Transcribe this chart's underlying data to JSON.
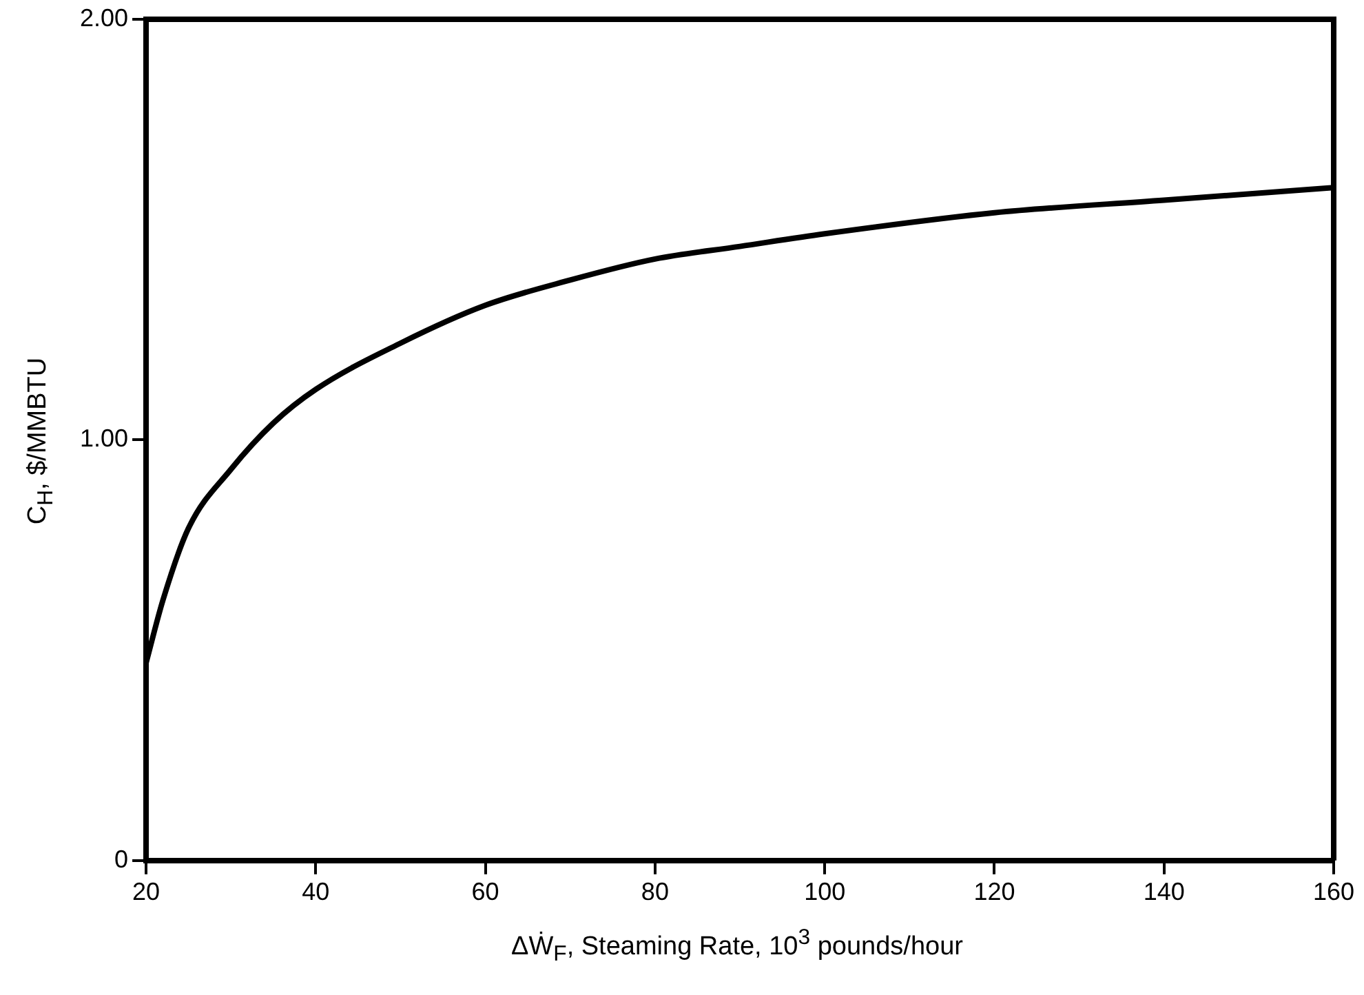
{
  "chart_data": {
    "type": "line",
    "xlabel": "ΔẆ$_{F}$, Steaming Rate, 10$^{3}$ pounds/hour",
    "ylabel": "C$_{H}$, $/MMBTU",
    "x": [
      20,
      22,
      25,
      30,
      35,
      40,
      50,
      60,
      70,
      80,
      90,
      100,
      120,
      140,
      160
    ],
    "series": [
      {
        "color": "#000000",
        "values": [
          0.47,
          0.62,
          0.79,
          0.93,
          1.04,
          1.12,
          1.23,
          1.32,
          1.38,
          1.43,
          1.46,
          1.49,
          1.54,
          1.57,
          1.6
        ]
      }
    ],
    "xlim": [
      20,
      160
    ],
    "xticks": [
      20,
      40,
      60,
      80,
      100,
      120,
      140,
      160
    ],
    "ylim": [
      0,
      2
    ],
    "yticks": [
      0,
      {
        "value": 1,
        "label": "1.00"
      },
      {
        "value": 2,
        "label": "2.00"
      }
    ],
    "marker": "none",
    "line_style": "solid"
  }
}
